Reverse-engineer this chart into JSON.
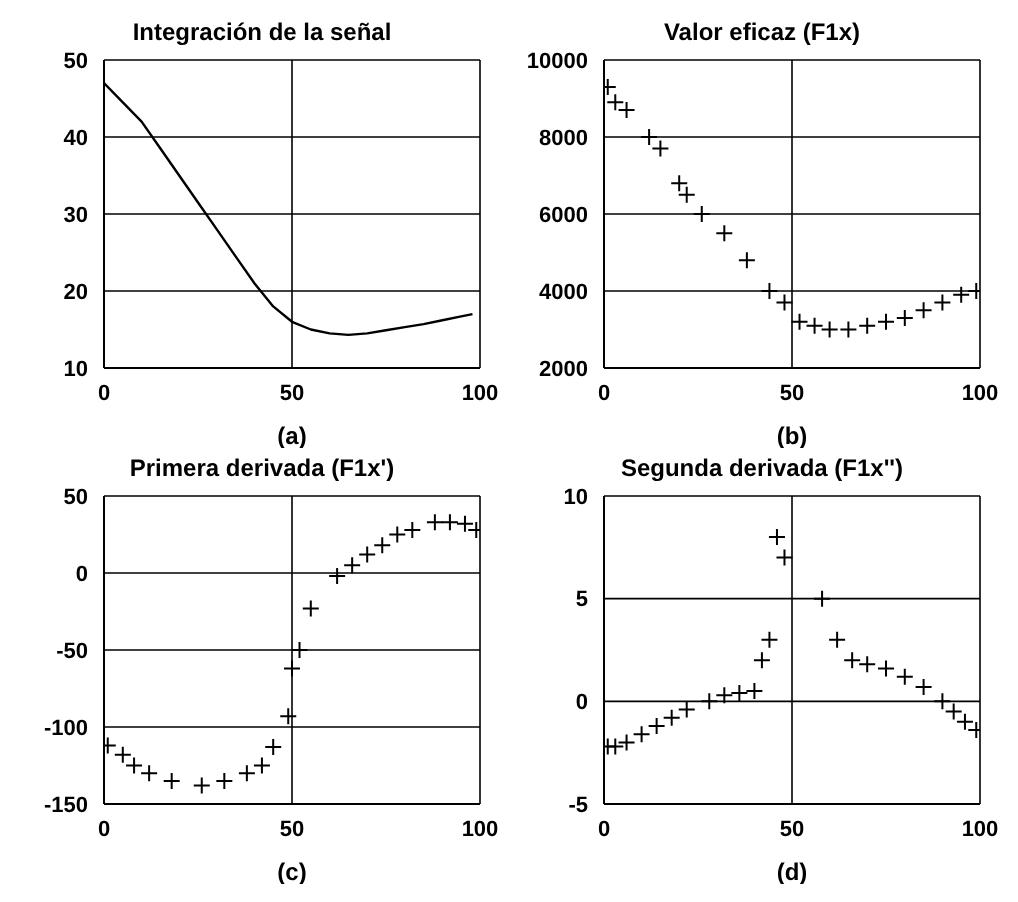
{
  "chart_data": [
    {
      "type": "line",
      "title": "Integración de la señal",
      "xlabel": "(a)",
      "xlim": [
        0,
        100
      ],
      "xticks": [
        0,
        50,
        100
      ],
      "ylim": [
        10,
        50
      ],
      "yticks": [
        10,
        20,
        30,
        40,
        50
      ],
      "grid": true,
      "marker": "none",
      "line_style": "solid",
      "series": [
        {
          "color": "#000000",
          "x": [
            0,
            5,
            10,
            15,
            20,
            25,
            30,
            35,
            40,
            45,
            50,
            55,
            60,
            65,
            70,
            75,
            80,
            85,
            90,
            95,
            98
          ],
          "values": [
            47,
            44.5,
            42,
            38.5,
            35,
            31.5,
            28,
            24.5,
            21,
            18,
            16,
            15,
            14.5,
            14.3,
            14.5,
            14.9,
            15.3,
            15.7,
            16.2,
            16.7,
            17
          ]
        }
      ]
    },
    {
      "type": "scatter",
      "title": "Valor eficaz (F1x)",
      "xlabel": "(b)",
      "xlim": [
        0,
        100
      ],
      "xticks": [
        0,
        50,
        100
      ],
      "ylim": [
        2000,
        10000
      ],
      "yticks": [
        2000,
        4000,
        6000,
        8000,
        10000
      ],
      "grid": true,
      "marker": "cross",
      "series": [
        {
          "color": "#000000",
          "x": [
            1,
            3,
            6,
            12,
            15,
            20,
            22,
            26,
            32,
            38,
            44,
            48,
            52,
            56,
            60,
            65,
            70,
            75,
            80,
            85,
            90,
            95,
            99
          ],
          "values": [
            9300,
            8900,
            8700,
            8000,
            7700,
            6800,
            6500,
            6000,
            5500,
            4800,
            4000,
            3700,
            3200,
            3100,
            3000,
            3000,
            3100,
            3200,
            3300,
            3500,
            3700,
            3900,
            4000
          ]
        }
      ]
    },
    {
      "type": "scatter",
      "title": "Primera derivada (F1x')",
      "xlabel": "(c)",
      "xlim": [
        0,
        100
      ],
      "xticks": [
        0,
        50,
        100
      ],
      "ylim": [
        -150,
        50
      ],
      "yticks": [
        -150,
        -100,
        -50,
        0,
        50
      ],
      "grid": true,
      "marker": "cross",
      "series": [
        {
          "color": "#000000",
          "x": [
            1,
            5,
            8,
            12,
            18,
            26,
            32,
            38,
            42,
            45,
            49,
            50,
            52,
            55,
            62,
            66,
            70,
            74,
            78,
            82,
            88,
            92,
            96,
            99
          ],
          "values": [
            -112,
            -118,
            -125,
            -130,
            -135,
            -138,
            -135,
            -130,
            -125,
            -113,
            -93,
            -62,
            -50,
            -23,
            -2,
            5,
            12,
            18,
            25,
            28,
            33,
            33,
            32,
            28
          ]
        }
      ]
    },
    {
      "type": "scatter",
      "title": "Segunda derivada (F1x'')",
      "xlabel": "(d)",
      "xlim": [
        0,
        100
      ],
      "xticks": [
        0,
        50,
        100
      ],
      "ylim": [
        -5,
        10
      ],
      "yticks": [
        -5,
        0,
        5,
        10
      ],
      "grid": true,
      "marker": "cross",
      "series": [
        {
          "color": "#000000",
          "x": [
            1,
            3,
            6,
            10,
            14,
            18,
            22,
            28,
            32,
            36,
            40,
            42,
            44,
            46,
            48,
            58,
            62,
            66,
            70,
            75,
            80,
            85,
            90,
            93,
            96,
            99
          ],
          "values": [
            -2.2,
            -2.2,
            -2,
            -1.6,
            -1.2,
            -0.8,
            -0.4,
            0,
            0.3,
            0.4,
            0.5,
            2,
            3,
            8,
            7,
            5,
            3,
            2,
            1.8,
            1.6,
            1.2,
            0.7,
            0,
            -0.5,
            -1,
            -1.4
          ]
        }
      ]
    }
  ]
}
